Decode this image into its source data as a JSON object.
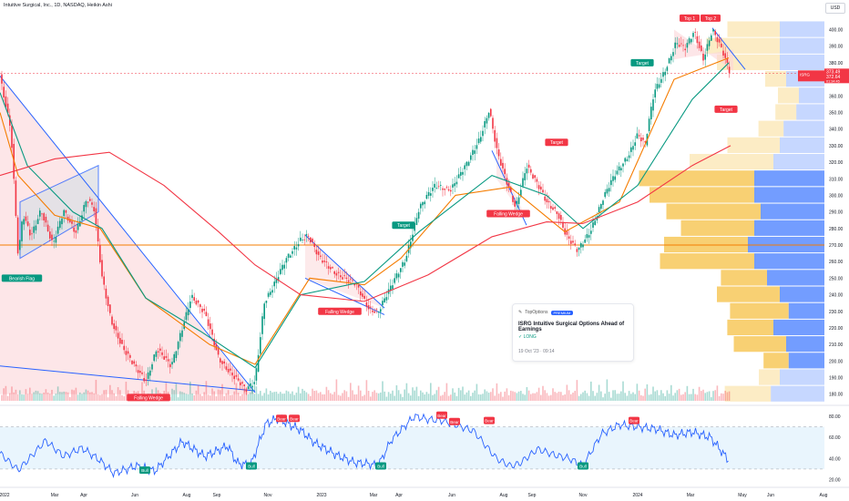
{
  "header": {
    "symbol_line": "Intuitive Surgical, Inc., 1D, NASDAQ, Heikin Ashi",
    "currency": "USD"
  },
  "colors": {
    "up": "#089981",
    "down": "#f23645",
    "sma_green": "#089981",
    "sma_red": "#f23645",
    "channel_blue": "#2962ff",
    "rsi_line": "#2962ff",
    "hline": "#f57c00",
    "vp_yellow": "#f7c85a",
    "vp_blue": "#5b8cff",
    "bearish_zone": "#fbd5d8",
    "flag_fill": "#dfe1e6"
  },
  "chart_data": [
    {
      "type": "line",
      "title": "",
      "style": "candlestick (Heikin Ashi) with overlays",
      "x_axis": {
        "ticks": [
          "2022",
          "Mar",
          "Apr",
          "Jun",
          "Aug",
          "Sep",
          "Nov",
          "2023",
          "Mar",
          "Apr",
          "Jun",
          "Aug",
          "Sep",
          "Nov",
          "2024",
          "Mar",
          "May",
          "Jun",
          "Aug"
        ]
      },
      "y_axis": {
        "scale": "linear",
        "min": 176,
        "max": 408,
        "ticks": [
          400,
          390,
          380,
          370,
          360,
          350,
          340,
          330,
          320,
          310,
          300,
          290,
          280,
          270,
          260,
          250,
          240,
          230,
          220,
          210,
          200,
          190,
          180
        ]
      },
      "price_path": [
        [
          0,
          372
        ],
        [
          12,
          340
        ],
        [
          20,
          262
        ],
        [
          25,
          288
        ],
        [
          34,
          275
        ],
        [
          45,
          292
        ],
        [
          58,
          270
        ],
        [
          70,
          290
        ],
        [
          83,
          278
        ],
        [
          95,
          298
        ],
        [
          103,
          292
        ],
        [
          112,
          250
        ],
        [
          122,
          225
        ],
        [
          135,
          208
        ],
        [
          148,
          196
        ],
        [
          160,
          188
        ],
        [
          172,
          208
        ],
        [
          188,
          196
        ],
        [
          210,
          240
        ],
        [
          225,
          228
        ],
        [
          240,
          202
        ],
        [
          255,
          192
        ],
        [
          270,
          182
        ],
        [
          280,
          188
        ],
        [
          290,
          236
        ],
        [
          300,
          245
        ],
        [
          315,
          262
        ],
        [
          330,
          274
        ],
        [
          338,
          276
        ],
        [
          350,
          262
        ],
        [
          370,
          253
        ],
        [
          390,
          246
        ],
        [
          405,
          232
        ],
        [
          415,
          230
        ],
        [
          428,
          243
        ],
        [
          445,
          262
        ],
        [
          460,
          292
        ],
        [
          478,
          306
        ],
        [
          495,
          304
        ],
        [
          512,
          318
        ],
        [
          526,
          334
        ],
        [
          537,
          352
        ],
        [
          546,
          325
        ],
        [
          556,
          308
        ],
        [
          566,
          293
        ],
        [
          578,
          318
        ],
        [
          586,
          310
        ],
        [
          600,
          296
        ],
        [
          612,
          290
        ],
        [
          622,
          275
        ],
        [
          634,
          266
        ],
        [
          648,
          279
        ],
        [
          662,
          298
        ],
        [
          675,
          312
        ],
        [
          690,
          325
        ],
        [
          700,
          337
        ],
        [
          708,
          330
        ],
        [
          718,
          362
        ],
        [
          730,
          376
        ],
        [
          742,
          392
        ],
        [
          752,
          388
        ],
        [
          762,
          399
        ],
        [
          772,
          383
        ],
        [
          782,
          400
        ],
        [
          794,
          385
        ],
        [
          802,
          373
        ]
      ],
      "moving_averages": [
        {
          "color": "#f57c00",
          "path": [
            [
              0,
              350
            ],
            [
              20,
              312
            ],
            [
              60,
              288
            ],
            [
              110,
              280
            ],
            [
              160,
              238
            ],
            [
              230,
              210
            ],
            [
              280,
              198
            ],
            [
              340,
              250
            ],
            [
              400,
              246
            ],
            [
              440,
              262
            ],
            [
              500,
              300
            ],
            [
              560,
              305
            ],
            [
              620,
              278
            ],
            [
              680,
              296
            ],
            [
              740,
              370
            ],
            [
              800,
              383
            ]
          ]
        },
        {
          "color": "#089981",
          "path": [
            [
              0,
              362
            ],
            [
              30,
              318
            ],
            [
              80,
              290
            ],
            [
              112,
              280
            ],
            [
              160,
              238
            ],
            [
              220,
              218
            ],
            [
              280,
              196
            ],
            [
              330,
              240
            ],
            [
              400,
              248
            ],
            [
              460,
              278
            ],
            [
              540,
              312
            ],
            [
              600,
              300
            ],
            [
              640,
              280
            ],
            [
              700,
              306
            ],
            [
              760,
              358
            ],
            [
              800,
              380
            ]
          ]
        },
        {
          "color": "#f23645",
          "path": [
            [
              0,
              312
            ],
            [
              60,
              322
            ],
            [
              120,
              326
            ],
            [
              180,
              306
            ],
            [
              240,
              278
            ],
            [
              280,
              258
            ],
            [
              330,
              240
            ],
            [
              400,
              236
            ],
            [
              470,
              252
            ],
            [
              540,
              275
            ],
            [
              600,
              284
            ],
            [
              640,
              283
            ],
            [
              700,
              296
            ],
            [
              760,
              318
            ],
            [
              802,
              330
            ]
          ]
        }
      ],
      "horizontal_level": 270,
      "annotations": [
        {
          "text": "Bearish Flag",
          "kind": "bear-green",
          "x": 24,
          "y": 250
        },
        {
          "text": "Falling Wedge",
          "kind": "red",
          "x": 163,
          "y": 178
        },
        {
          "text": "Falling Wedge",
          "kind": "red",
          "x": 373,
          "y": 230
        },
        {
          "text": "Falling Wedge",
          "kind": "red",
          "x": 558,
          "y": 289
        },
        {
          "text": "Target",
          "kind": "green",
          "x": 443,
          "y": 282
        },
        {
          "text": "Target",
          "kind": "red",
          "x": 611,
          "y": 332
        },
        {
          "text": "Target",
          "kind": "green",
          "x": 705,
          "y": 380
        },
        {
          "text": "Target",
          "kind": "red",
          "x": 797,
          "y": 352
        },
        {
          "text": "Top 1",
          "kind": "red",
          "x": 757,
          "y": 407
        },
        {
          "text": "Top 2",
          "kind": "red",
          "x": 780,
          "y": 407
        }
      ],
      "price_labels": [
        {
          "text": "ISRG",
          "value": 372.64,
          "sub": "01:34:45",
          "color": "#f23645"
        },
        {
          "value": 373.49,
          "color": "#f23645"
        }
      ],
      "volume_profile": {
        "levels": [
          400,
          390,
          380,
          370,
          360,
          350,
          340,
          330,
          320,
          310,
          300,
          290,
          280,
          270,
          260,
          250,
          240,
          230,
          220,
          210,
          200,
          190,
          180
        ],
        "buy": [
          0.25,
          0.35,
          0.3,
          0.1,
          0.1,
          0.1,
          0.12,
          0.25,
          0.4,
          0.55,
          0.5,
          0.45,
          0.35,
          0.4,
          0.45,
          0.22,
          0.3,
          0.28,
          0.22,
          0.25,
          0.12,
          0.1,
          0.22
        ],
        "sell": [
          0.35,
          0.35,
          0.35,
          0.3,
          0.2,
          0.22,
          0.32,
          0.35,
          0.4,
          0.55,
          0.55,
          0.5,
          0.55,
          0.6,
          0.55,
          0.45,
          0.35,
          0.28,
          0.4,
          0.3,
          0.28,
          0.35,
          0.42
        ]
      },
      "volume_bars": [
        0.2,
        0.35,
        0.5,
        0.3,
        0.25,
        0.4,
        0.3,
        0.6,
        0.2,
        0.3,
        0.25,
        0.3,
        0.35,
        0.2,
        0.55,
        0.3,
        0.25,
        0.3,
        0.45,
        0.3,
        0.2,
        0.25,
        0.6,
        0.3,
        0.2,
        0.35,
        0.3,
        0.25,
        0.4,
        0.3,
        0.55,
        0.3,
        0.25,
        0.3,
        0.2,
        0.35,
        0.3,
        0.5,
        0.3,
        0.25
      ]
    },
    {
      "type": "line",
      "title": "",
      "indicator": "RSI",
      "y_axis": {
        "min": 17,
        "max": 86,
        "ticks": [
          80.0,
          60.0,
          40.0,
          20.0
        ]
      },
      "band": [
        30,
        70
      ],
      "path": [
        [
          0,
          45
        ],
        [
          20,
          29
        ],
        [
          30,
          38
        ],
        [
          50,
          57
        ],
        [
          70,
          42
        ],
        [
          90,
          50
        ],
        [
          110,
          38
        ],
        [
          125,
          26
        ],
        [
          150,
          33
        ],
        [
          170,
          28
        ],
        [
          200,
          56
        ],
        [
          225,
          42
        ],
        [
          250,
          52
        ],
        [
          260,
          36
        ],
        [
          275,
          33
        ],
        [
          292,
          73
        ],
        [
          305,
          78
        ],
        [
          320,
          71
        ],
        [
          330,
          67
        ],
        [
          345,
          55
        ],
        [
          370,
          43
        ],
        [
          390,
          36
        ],
        [
          405,
          35
        ],
        [
          415,
          33
        ],
        [
          430,
          58
        ],
        [
          455,
          80
        ],
        [
          470,
          77
        ],
        [
          485,
          76
        ],
        [
          500,
          72
        ],
        [
          520,
          66
        ],
        [
          545,
          40
        ],
        [
          560,
          33
        ],
        [
          570,
          35
        ],
        [
          590,
          49
        ],
        [
          610,
          43
        ],
        [
          625,
          40
        ],
        [
          640,
          33
        ],
        [
          660,
          63
        ],
        [
          680,
          72
        ],
        [
          700,
          70
        ],
        [
          720,
          68
        ],
        [
          740,
          62
        ],
        [
          760,
          65
        ],
        [
          780,
          60
        ],
        [
          800,
          38
        ]
      ],
      "labels": [
        {
          "text": "Bull",
          "value": 29,
          "x": 159
        },
        {
          "text": "Bull",
          "value": 33,
          "x": 276
        },
        {
          "text": "Bear",
          "value": 78,
          "x": 309
        },
        {
          "text": "Bear",
          "value": 78,
          "x": 323
        },
        {
          "text": "Bull",
          "value": 33,
          "x": 418
        },
        {
          "text": "Bear",
          "value": 81,
          "x": 485
        },
        {
          "text": "Bear",
          "value": 75,
          "x": 499
        },
        {
          "text": "Bear",
          "value": 76,
          "x": 537
        },
        {
          "text": "Bull",
          "value": 33,
          "x": 640
        },
        {
          "text": "Bear",
          "value": 76,
          "x": 696
        }
      ]
    }
  ],
  "news_card": {
    "source": "TopOptions",
    "pill": "PREMIUM",
    "headline": "ISRG Intuitive Surgical Options Ahead of Earnings",
    "position": "✓ LONG",
    "time": "19 Oct '23 · 09:14"
  }
}
